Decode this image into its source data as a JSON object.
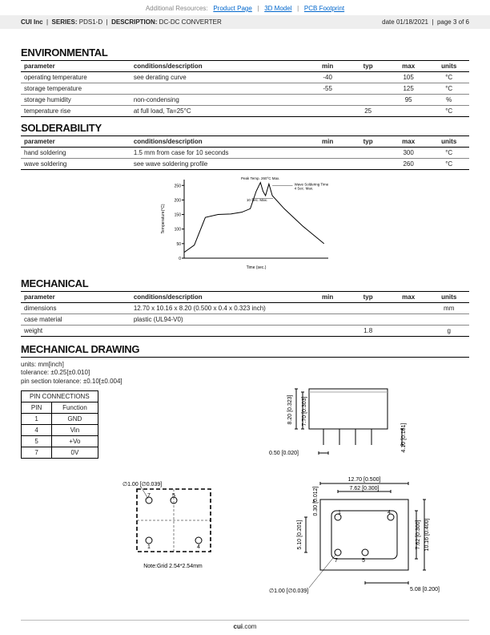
{
  "topResources": {
    "labelPrefix": "Additional Resources:",
    "links": [
      "Product Page",
      "3D Model",
      "PCB Footprint"
    ]
  },
  "header": {
    "company": "CUI Inc",
    "seriesLabel": "SERIES:",
    "series": "PDS1-D",
    "descLabel": "DESCRIPTION:",
    "desc": "DC-DC CONVERTER",
    "dateLabel": "date",
    "date": "01/18/2021",
    "pageLabel": "page",
    "page": "3 of 6"
  },
  "sections": {
    "environmental": {
      "title": "ENVIRONMENTAL",
      "cols": [
        "parameter",
        "conditions/description",
        "min",
        "typ",
        "max",
        "units"
      ],
      "rows": [
        {
          "param": "operating temperature",
          "cond": "see derating curve",
          "min": "-40",
          "typ": "",
          "max": "105",
          "units": "°C"
        },
        {
          "param": "storage temperature",
          "cond": "",
          "min": "-55",
          "typ": "",
          "max": "125",
          "units": "°C"
        },
        {
          "param": "storage humidity",
          "cond": "non-condensing",
          "min": "",
          "typ": "",
          "max": "95",
          "units": "%"
        },
        {
          "param": "temperature rise",
          "cond": "at full load, Ta=25°C",
          "min": "",
          "typ": "25",
          "max": "",
          "units": "°C"
        }
      ]
    },
    "solderability": {
      "title": "SOLDERABILITY",
      "cols": [
        "parameter",
        "conditions/description",
        "min",
        "typ",
        "max",
        "units"
      ],
      "rows": [
        {
          "param": "hand soldering",
          "cond": "1.5 mm from case for 10 seconds",
          "min": "",
          "typ": "",
          "max": "300",
          "units": "°C"
        },
        {
          "param": "wave soldering",
          "cond": "see wave soldering profile",
          "min": "",
          "typ": "",
          "max": "260",
          "units": "°C"
        }
      ]
    },
    "mechanical": {
      "title": "MECHANICAL",
      "cols": [
        "parameter",
        "conditions/description",
        "min",
        "typ",
        "max",
        "units"
      ],
      "rows": [
        {
          "param": "dimensions",
          "cond": "12.70 x 10.16 x 8.20 (0.500 x 0.4 x 0.323 inch)",
          "min": "",
          "typ": "",
          "max": "",
          "units": "mm"
        },
        {
          "param": "case material",
          "cond": "plastic (UL94-V0)",
          "min": "",
          "typ": "",
          "max": "",
          "units": ""
        },
        {
          "param": "weight",
          "cond": "",
          "min": "",
          "typ": "1.8",
          "max": "",
          "units": "g"
        }
      ]
    }
  },
  "solderChart": {
    "type": "line",
    "title": "",
    "xLabel": "Time (sec.)",
    "yLabel": "Temperature(°C)",
    "peakLabel": "Peak Temp. 260°C Max.",
    "waveLabel": "Wave Soldering Time 4 Sec. Max.",
    "tenSecLabel": "10 Sec. Max.",
    "yTicks": [
      0,
      50,
      100,
      150,
      200,
      250
    ],
    "background_color": "#ffffff",
    "axis_color": "#000000",
    "tick_color": "#000000",
    "line_color": "#000000",
    "label_fontsize": 5,
    "axislabel_fontsize": 5,
    "points": [
      [
        0,
        20
      ],
      [
        12,
        45
      ],
      [
        25,
        140
      ],
      [
        40,
        150
      ],
      [
        55,
        152
      ],
      [
        68,
        158
      ],
      [
        78,
        170
      ],
      [
        85,
        230
      ],
      [
        90,
        260
      ],
      [
        93,
        230
      ],
      [
        96,
        215
      ],
      [
        100,
        255
      ],
      [
        104,
        215
      ],
      [
        118,
        170
      ],
      [
        140,
        110
      ],
      [
        165,
        50
      ]
    ]
  },
  "mechanicalDrawing": {
    "title": "MECHANICAL DRAWING",
    "notes": {
      "units": "units: mm[inch]",
      "tolerance": "tolerance: ±0.25[±0.010]",
      "pinTol": "pin section tolerance: ±0.10[±0.004]"
    },
    "pinTable": {
      "header": "PIN CONNECTIONS",
      "cols": [
        "PIN",
        "Function"
      ],
      "rows": [
        [
          "1",
          "GND"
        ],
        [
          "4",
          "Vin"
        ],
        [
          "5",
          "+Vo"
        ],
        [
          "7",
          "0V"
        ]
      ]
    },
    "footprint": {
      "holeDia": "∅1.00 [∅0.039]",
      "gridNote": "Note:Grid 2.54*2.54mm"
    },
    "sideView": {
      "h_out": "8.20 [0.323]",
      "h_in": "7.70 [0.303]",
      "pin_h": "4.10 [0.161]",
      "pin_w": "0.50 [0.020]"
    },
    "topView": {
      "w_out": "12.70 [0.500]",
      "w_in": "7.62 [0.300]",
      "h_out": "10.16 [0.400]",
      "h_in": "7.62 [0.300]",
      "offset_v": "5.10 [0.201]",
      "offset_v2": "0.30 [0.012]",
      "offset_h": "5.08 [0.200]",
      "hole": "∅1.00 [∅0.039]",
      "pinLabels": [
        "1",
        "4",
        "5",
        "7"
      ]
    },
    "line_color": "#000000",
    "dim_color": "#000000",
    "dashed_color": "#000000"
  },
  "footer": {
    "domainBold": "cui",
    "domainTail": ".com"
  }
}
